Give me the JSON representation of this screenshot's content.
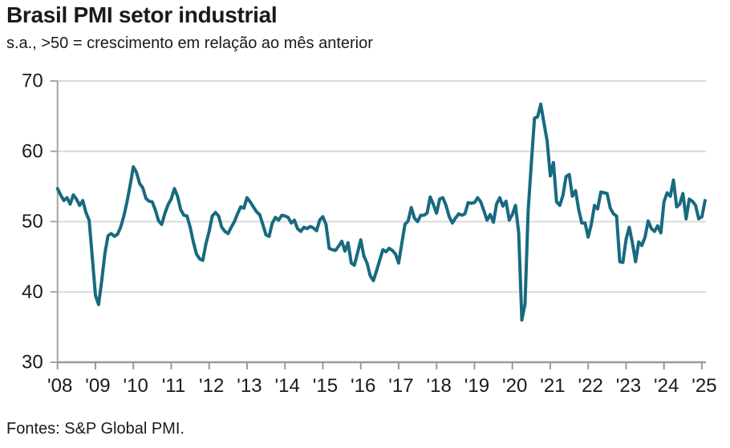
{
  "header": {
    "title": "Brasil PMI setor industrial",
    "subtitle": "s.a., >50 = crescimento em relação ao mês anterior"
  },
  "footer": {
    "source": "Fontes: S&P Global PMI."
  },
  "colors": {
    "line": "#176a80",
    "grid": "#d9d9d9",
    "axis": "#a6a6a6",
    "x_axis": "#999999",
    "text": "#1a1a1a"
  },
  "chart_data": {
    "type": "line",
    "title": "Brasil PMI setor industrial",
    "subtitle": "s.a., >50 = crescimento em relação ao mês anterior",
    "source": "Fontes: S&P Global PMI.",
    "frequency": "monthly",
    "x_start_label": "'08",
    "x_end_label": "'25",
    "x_tick_labels": [
      "'08",
      "'09",
      "'10",
      "'11",
      "'12",
      "'13",
      "'14",
      "'15",
      "'16",
      "'17",
      "'18",
      "'19",
      "'20",
      "'21",
      "'22",
      "'23",
      "'24",
      "'25"
    ],
    "y_ticks": [
      30,
      40,
      50,
      60,
      70
    ],
    "ylim": [
      30,
      70
    ],
    "grid": "horizontal",
    "legend": "none",
    "series": [
      {
        "name": "PMI setor industrial (s.a.)",
        "start": "2008-01",
        "end": "2025-02",
        "values": [
          54.7,
          53.8,
          53.0,
          53.4,
          52.5,
          53.8,
          53.2,
          52.3,
          53.0,
          51.3,
          50.2,
          45.0,
          39.5,
          38.2,
          41.6,
          45.5,
          48.0,
          48.3,
          47.9,
          48.2,
          49.2,
          50.8,
          52.8,
          55.2,
          57.8,
          57.0,
          55.4,
          54.8,
          53.3,
          52.9,
          52.8,
          51.6,
          50.1,
          49.6,
          51.2,
          52.4,
          53.2,
          54.7,
          53.6,
          51.7,
          50.9,
          50.8,
          49.2,
          47.1,
          45.4,
          44.7,
          44.5,
          46.9,
          48.6,
          50.8,
          51.3,
          50.8,
          49.2,
          48.6,
          48.3,
          49.2,
          50.0,
          51.1,
          52.1,
          51.9,
          53.4,
          52.8,
          52.1,
          51.4,
          51.0,
          49.6,
          48.1,
          47.9,
          49.8,
          50.6,
          50.2,
          50.9,
          50.8,
          50.6,
          49.8,
          50.2,
          49.0,
          48.6,
          49.2,
          49.0,
          49.3,
          49.1,
          48.7,
          50.2,
          50.7,
          49.6,
          46.2,
          46.0,
          45.9,
          46.5,
          47.2,
          45.8,
          47.0,
          44.1,
          43.8,
          45.6,
          47.4,
          45.1,
          44.1,
          42.3,
          41.6,
          43.0,
          44.5,
          46.0,
          45.7,
          46.2,
          45.9,
          45.4,
          44.1,
          46.9,
          49.6,
          50.1,
          52.0,
          50.5,
          50.0,
          50.9,
          50.9,
          51.2,
          53.5,
          52.4,
          51.2,
          53.2,
          53.4,
          52.3,
          50.7,
          49.8,
          50.5,
          51.1,
          50.9,
          51.1,
          52.7,
          52.6,
          52.7,
          53.4,
          52.8,
          51.5,
          50.2,
          51.0,
          49.9,
          52.5,
          53.4,
          52.2,
          52.9,
          50.2,
          51.0,
          52.3,
          48.4,
          36.0,
          38.3,
          51.6,
          58.2,
          64.7,
          64.9,
          66.7,
          64.0,
          61.5,
          56.5,
          58.4,
          52.8,
          52.3,
          53.7,
          56.4,
          56.7,
          53.6,
          54.4,
          51.7,
          49.8,
          49.8,
          47.8,
          49.6,
          52.3,
          51.8,
          54.2,
          54.1,
          54.0,
          51.9,
          51.1,
          50.8,
          44.3,
          44.2,
          47.5,
          49.2,
          47.0,
          44.3,
          47.1,
          46.6,
          47.8,
          50.1,
          49.0,
          48.6,
          49.4,
          48.4,
          52.8,
          54.1,
          53.6,
          55.9,
          52.1,
          52.5,
          54.0,
          50.4,
          53.2,
          52.9,
          52.3,
          50.4,
          50.7,
          53.0
        ]
      }
    ]
  }
}
